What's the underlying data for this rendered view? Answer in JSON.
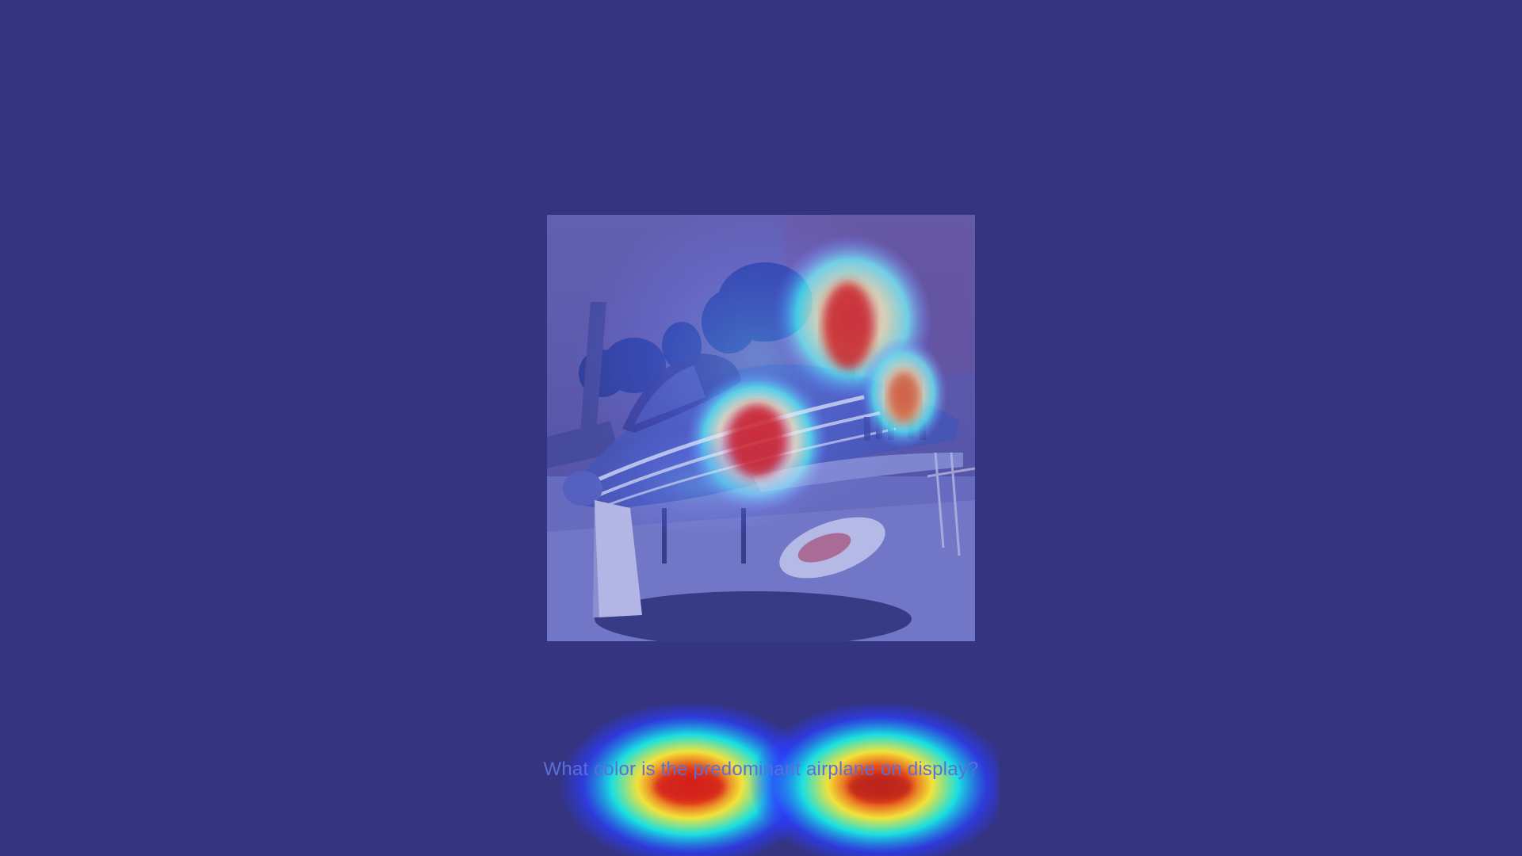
{
  "question": {
    "text": "What color is the predominant airplane on display?"
  },
  "image": {
    "subject": "airplane-on-display",
    "overlay": "attention-heatmap"
  },
  "colors": {
    "background": "#353480",
    "heat_low": "#2b3cff",
    "heat_mid": "#19e0e0",
    "heat_warm": "#f2e23a",
    "heat_high": "#e0241b"
  }
}
